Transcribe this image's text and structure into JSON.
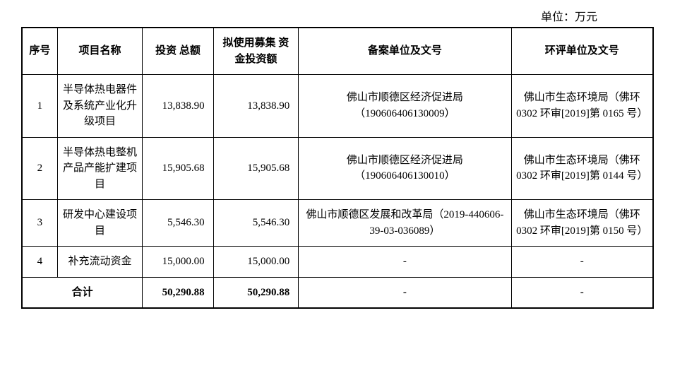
{
  "unit_label": "单位：万元",
  "columns": {
    "seq": "序号",
    "name": "项目名称",
    "total": "投资\n总额",
    "fund": "拟使用募集\n资金投资额",
    "filing": "备案单位及文号",
    "env": "环评单位及文号"
  },
  "rows": [
    {
      "seq": "1",
      "name": "半导体热电器件及系统产业化升级项目",
      "total": "13,838.90",
      "fund": "13,838.90",
      "filing": "佛山市顺德区经济促进局（190606406130009）",
      "env": "佛山市生态环境局（佛环 0302 环审[2019]第 0165 号）"
    },
    {
      "seq": "2",
      "name": "半导体热电整机产品产能扩建项目",
      "total": "15,905.68",
      "fund": "15,905.68",
      "filing": "佛山市顺德区经济促进局（190606406130010）",
      "env": "佛山市生态环境局（佛环 0302 环审[2019]第 0144 号）"
    },
    {
      "seq": "3",
      "name": "研发中心建设项目",
      "total": "5,546.30",
      "fund": "5,546.30",
      "filing": "佛山市顺德区发展和改革局（2019-440606-39-03-036089）",
      "env": "佛山市生态环境局（佛环 0302 环审[2019]第 0150 号）"
    },
    {
      "seq": "4",
      "name": "补充流动资金",
      "total": "15,000.00",
      "fund": "15,000.00",
      "filing": "-",
      "env": "-"
    }
  ],
  "totals": {
    "label": "合计",
    "total": "50,290.88",
    "fund": "50,290.88",
    "filing": "-",
    "env": "-"
  }
}
